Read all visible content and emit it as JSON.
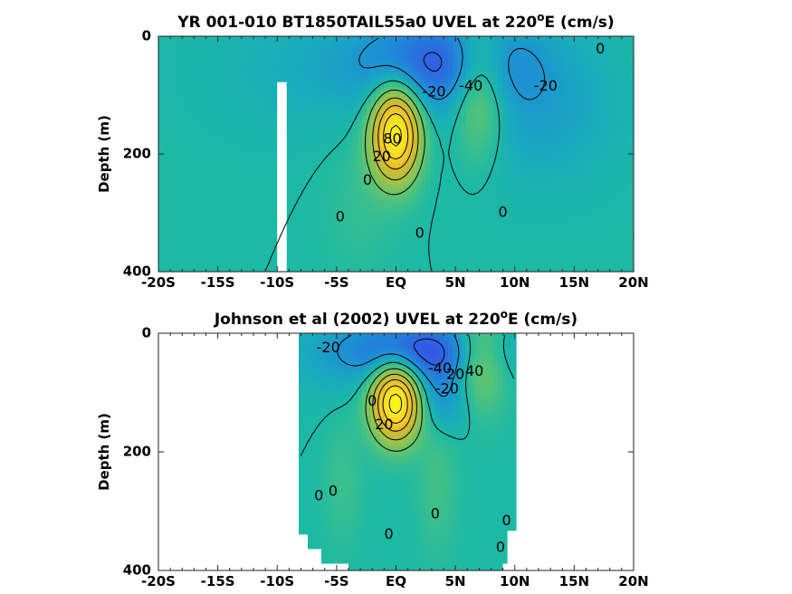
{
  "chart_data": [
    {
      "type": "heatmap",
      "title_main": "YR 001-010 BT1850TAIL55a0 UVEL at 220",
      "title_sup": "o",
      "title_tail": "E (cm/s)",
      "ylabel": "Depth (m)",
      "xlabel": "",
      "xlim": [
        -20,
        20
      ],
      "ylim": [
        0,
        400
      ],
      "y_reversed": true,
      "x_ticks": [
        -20,
        -15,
        -10,
        -5,
        0,
        5,
        10,
        15,
        20
      ],
      "x_tick_labels": [
        "-20S",
        "-15S",
        "-10S",
        "-5S",
        "EQ",
        "5N",
        "10N",
        "15N",
        "20N"
      ],
      "y_ticks": [
        0,
        200,
        400
      ],
      "y_tick_labels": [
        "0",
        "200",
        "400"
      ],
      "data_extent_x": [
        -20,
        20
      ],
      "masked_strip": {
        "x": [
          -10,
          -9.2
        ],
        "depth": [
          78,
          400
        ]
      },
      "contour_labels": [
        {
          "text": "0",
          "x": 17.2,
          "depth": 22
        },
        {
          "text": "-20",
          "x": 3.2,
          "depth": 95
        },
        {
          "text": "-40",
          "x": 6.3,
          "depth": 85
        },
        {
          "text": "-20",
          "x": 12.6,
          "depth": 85
        },
        {
          "text": "80",
          "x": -0.3,
          "depth": 175
        },
        {
          "text": "20",
          "x": -1.2,
          "depth": 205
        },
        {
          "text": "0",
          "x": -2.4,
          "depth": 245
        },
        {
          "text": "0",
          "x": -4.7,
          "depth": 308
        },
        {
          "text": "0",
          "x": 2.0,
          "depth": 335
        },
        {
          "text": "0",
          "x": 9.0,
          "depth": 300
        }
      ],
      "features": [
        {
          "name": "EUC core",
          "x": 0,
          "depth": 160,
          "value": 100
        },
        {
          "name": "westward surface flow",
          "x": 4,
          "depth": 40,
          "value": -45
        },
        {
          "name": "NECC",
          "x": 7,
          "depth": 70,
          "value": 40
        }
      ]
    },
    {
      "type": "heatmap",
      "title_main": "Johnson et al (2002) UVEL at 220",
      "title_sup": "o",
      "title_tail": "E (cm/s)",
      "ylabel": "Depth (m)",
      "xlabel": "",
      "xlim": [
        -20,
        20
      ],
      "ylim": [
        0,
        400
      ],
      "y_reversed": true,
      "x_ticks": [
        -20,
        -15,
        -10,
        -5,
        0,
        5,
        10,
        15,
        20
      ],
      "x_tick_labels": [
        "-20S",
        "-15S",
        "-10S",
        "-5S",
        "EQ",
        "5N",
        "10N",
        "15N",
        "20N"
      ],
      "y_ticks": [
        0,
        200,
        400
      ],
      "y_tick_labels": [
        "0",
        "200",
        "400"
      ],
      "data_extent_x": [
        -8,
        10
      ],
      "contour_labels": [
        {
          "text": "-20",
          "x": -5.7,
          "depth": 25
        },
        {
          "text": "-40",
          "x": 3.7,
          "depth": 60
        },
        {
          "text": "20",
          "x": 5.0,
          "depth": 70
        },
        {
          "text": "-20",
          "x": 4.3,
          "depth": 95
        },
        {
          "text": "40",
          "x": 6.6,
          "depth": 65
        },
        {
          "text": "20",
          "x": -1.0,
          "depth": 155
        },
        {
          "text": "0",
          "x": -2.0,
          "depth": 115
        },
        {
          "text": "0",
          "x": -6.5,
          "depth": 275
        },
        {
          "text": "0",
          "x": -5.3,
          "depth": 267
        },
        {
          "text": "0",
          "x": 3.3,
          "depth": 305
        },
        {
          "text": "0",
          "x": -0.6,
          "depth": 340
        },
        {
          "text": "0",
          "x": 9.3,
          "depth": 317
        },
        {
          "text": "0",
          "x": 8.8,
          "depth": 362
        }
      ],
      "features": [
        {
          "name": "EUC core",
          "x": 0,
          "depth": 120,
          "value": 100
        },
        {
          "name": "westward surface flow",
          "x": 2,
          "depth": 30,
          "value": -45
        },
        {
          "name": "NECC",
          "x": 7,
          "depth": 40,
          "value": 40
        }
      ]
    }
  ]
}
